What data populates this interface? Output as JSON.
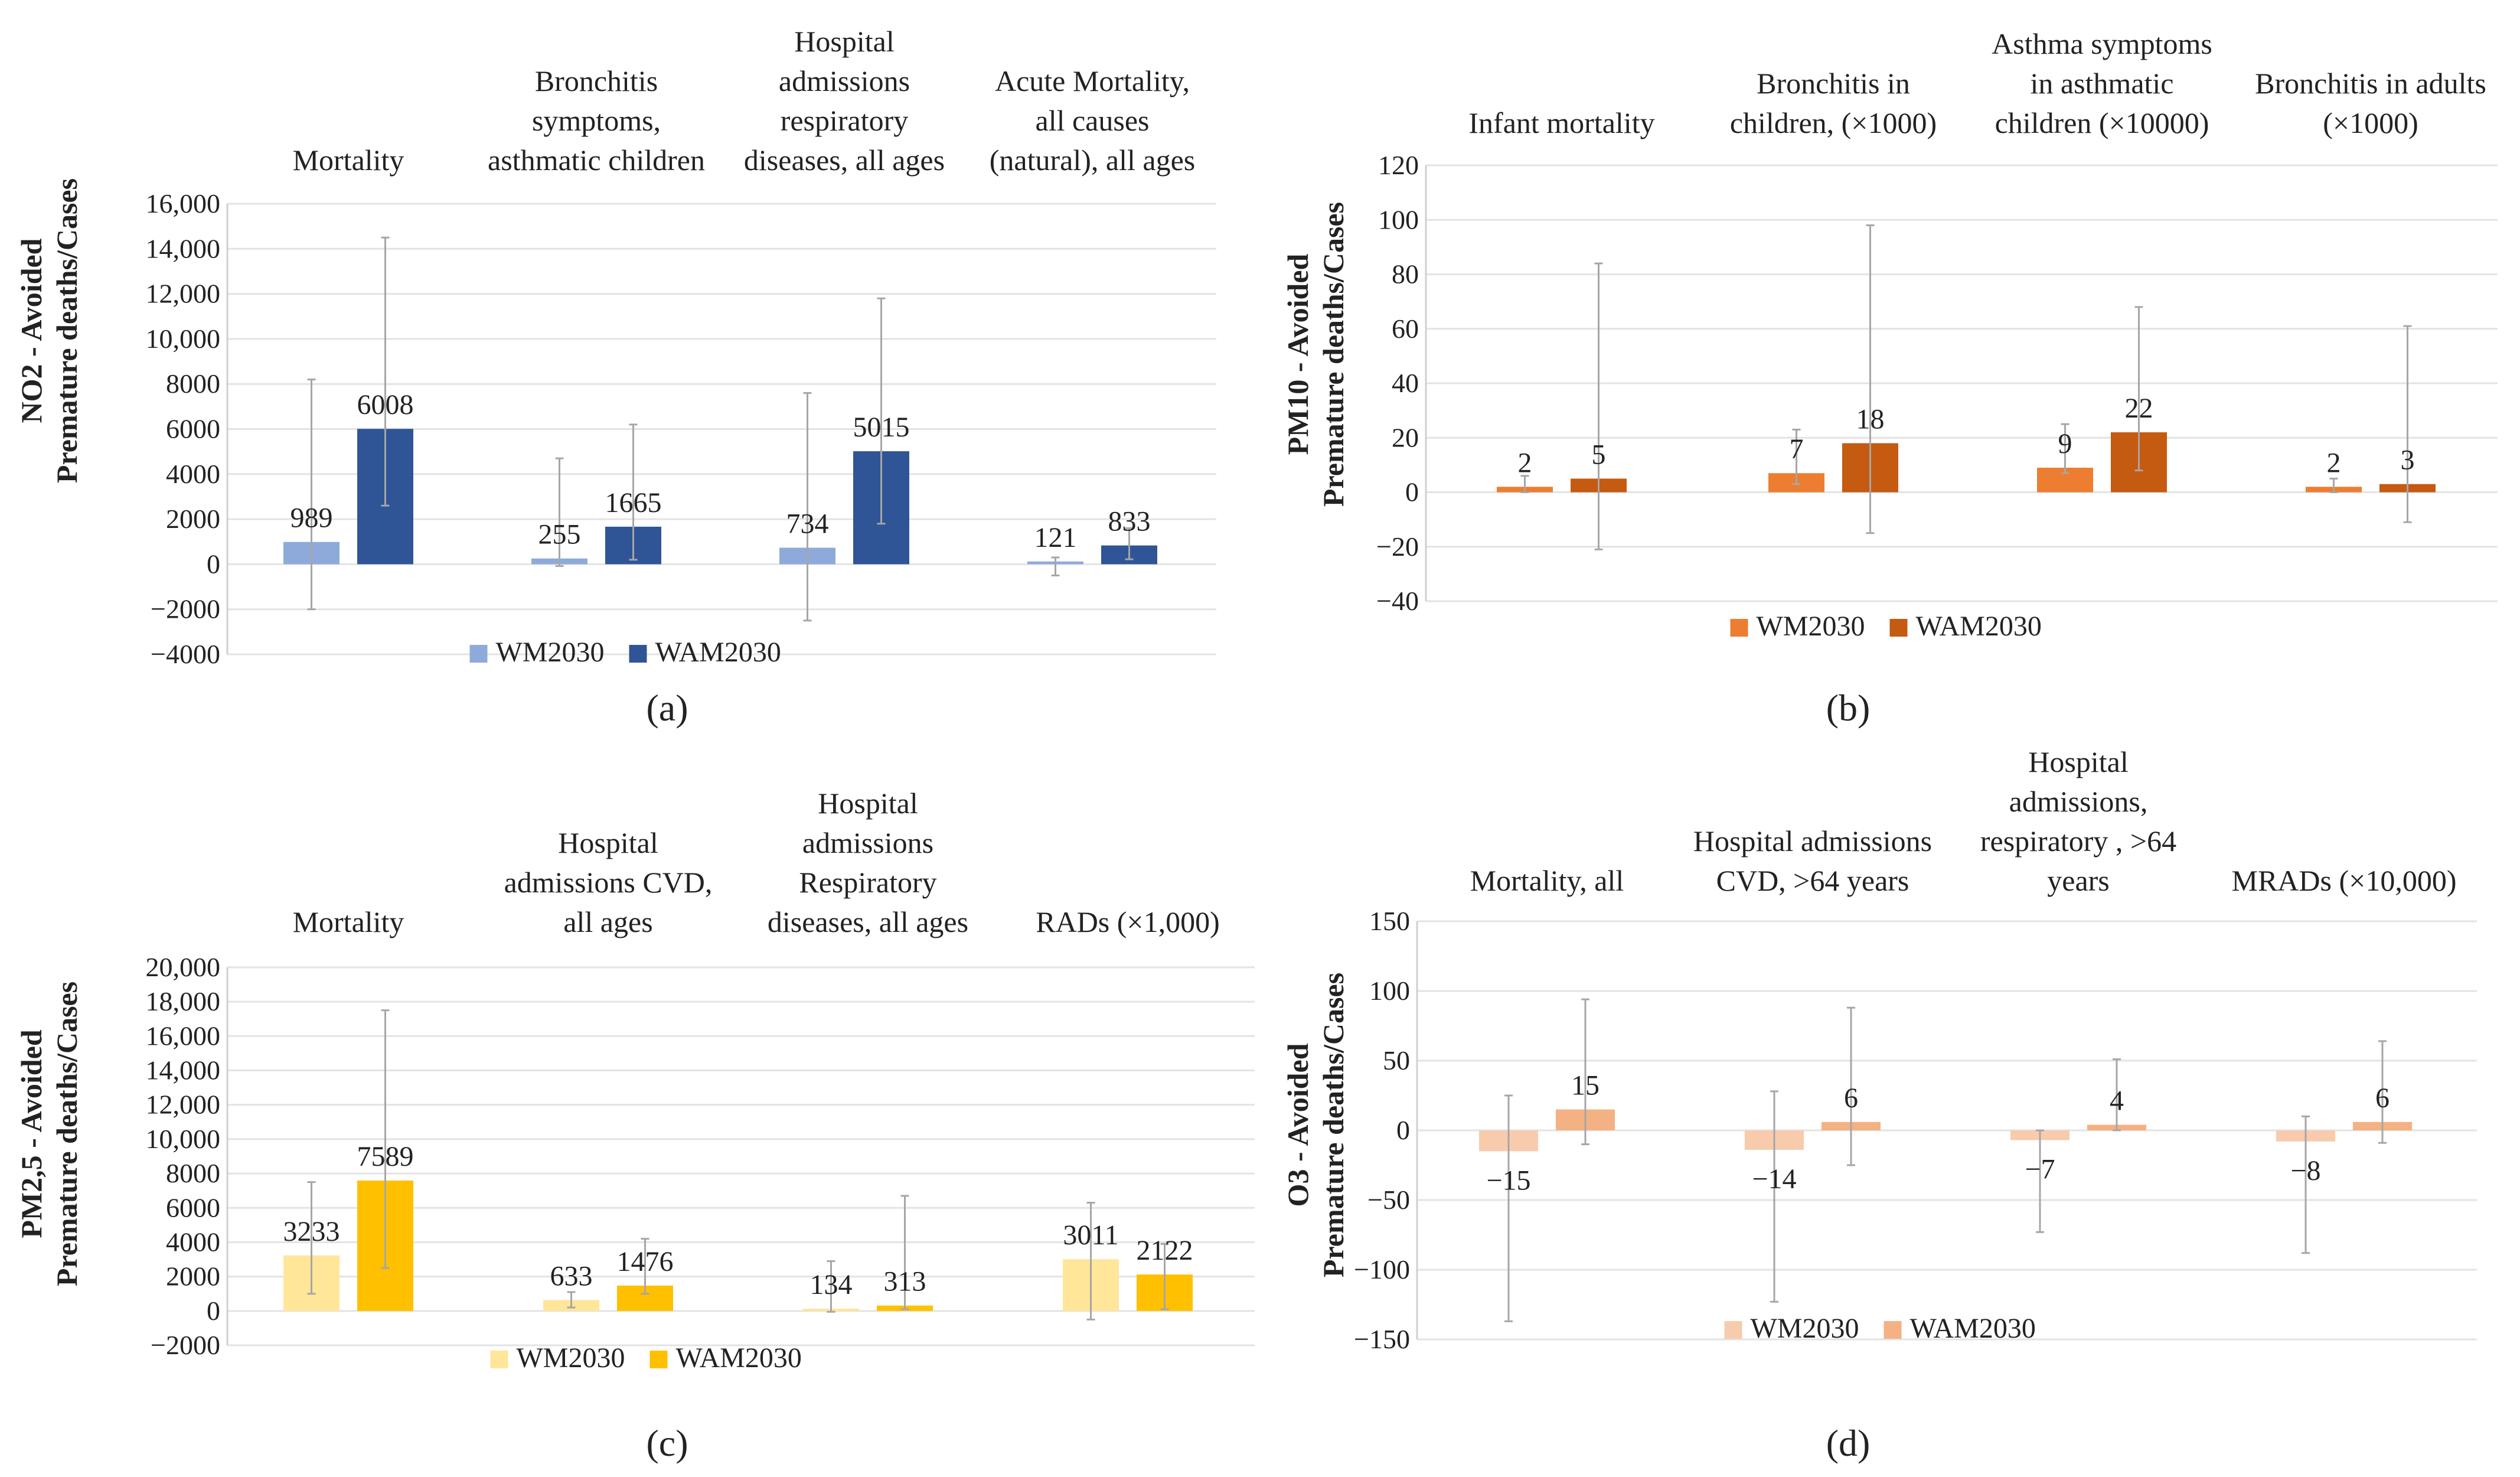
{
  "chart_data": [
    {
      "type": "bar",
      "panel_label": "(a)",
      "ylabel": "NO2 - Avoided Premature deaths/Cases",
      "ylim": [
        -4000,
        16000
      ],
      "yticks": [
        -4000,
        -2000,
        0,
        2000,
        4000,
        6000,
        8000,
        10000,
        12000,
        14000,
        16000
      ],
      "ytick_labels": [
        "−4000",
        "−2000",
        "0",
        "2000",
        "4000",
        "6000",
        "8000",
        "10,000",
        "12,000",
        "14,000",
        "16,000"
      ],
      "categories": [
        [
          "Mortality"
        ],
        [
          "Bronchitis",
          "symptoms,",
          "asthmatic children"
        ],
        [
          "Hospital",
          "admissions",
          "respiratory",
          "diseases, all ages"
        ],
        [
          "Acute Mortality,",
          "all causes",
          "(natural), all ages"
        ]
      ],
      "series": [
        {
          "name": "WM2030",
          "color": "#8eaadb",
          "values": [
            989,
            255,
            734,
            121
          ],
          "labels": [
            "989",
            "255",
            "734",
            "121"
          ],
          "err_low": [
            -2000,
            -80,
            -2500,
            -500
          ],
          "err_high": [
            8200,
            4700,
            7600,
            300
          ]
        },
        {
          "name": "WAM2030",
          "color": "#2f5597",
          "values": [
            6008,
            1665,
            5015,
            833
          ],
          "labels": [
            "6008",
            "1665",
            "5015",
            "833"
          ],
          "err_low": [
            2600,
            200,
            1800,
            220
          ],
          "err_high": [
            14500,
            6200,
            11800,
            1600
          ]
        }
      ]
    },
    {
      "type": "bar",
      "panel_label": "(b)",
      "ylabel": "PM10 - Avoided Premature deaths/Cases",
      "ylim": [
        -40,
        120
      ],
      "yticks": [
        -40,
        -20,
        0,
        20,
        40,
        60,
        80,
        100,
        120
      ],
      "ytick_labels": [
        "−40",
        "−20",
        "0",
        "20",
        "40",
        "60",
        "80",
        "100",
        "120"
      ],
      "categories": [
        [
          "Infant mortality"
        ],
        [
          "Bronchitis in",
          "children, (×1000)"
        ],
        [
          "Asthma symptoms",
          "in asthmatic",
          "children (×10000)"
        ],
        [
          "Bronchitis in adults",
          "(×1000)"
        ]
      ],
      "series": [
        {
          "name": "WM2030",
          "color": "#ed7d31",
          "values": [
            2,
            7,
            9,
            2
          ],
          "labels": [
            "2",
            "7",
            "9",
            "2"
          ],
          "err_low": [
            0,
            3,
            7,
            0
          ],
          "err_high": [
            6,
            23,
            25,
            5
          ]
        },
        {
          "name": "WAM2030",
          "color": "#c55a11",
          "values": [
            5,
            18,
            22,
            3
          ],
          "labels": [
            "5",
            "18",
            "22",
            "3"
          ],
          "err_low": [
            -21,
            -15,
            8,
            -11
          ],
          "err_high": [
            84,
            98,
            68,
            61
          ]
        }
      ]
    },
    {
      "type": "bar",
      "panel_label": "(c)",
      "ylabel": "PM2,5 - Avoided Premature deaths/Cases",
      "ylim": [
        -2000,
        20000
      ],
      "yticks": [
        -2000,
        0,
        2000,
        4000,
        6000,
        8000,
        10000,
        12000,
        14000,
        16000,
        18000,
        20000
      ],
      "ytick_labels": [
        "−2000",
        "0",
        "2000",
        "4000",
        "6000",
        "8000",
        "10,000",
        "12,000",
        "14,000",
        "16,000",
        "18,000",
        "20,000"
      ],
      "categories": [
        [
          "Mortality"
        ],
        [
          "Hospital",
          "admissions CVD,",
          "all ages"
        ],
        [
          "Hospital",
          "admissions",
          "Respiratory",
          "diseases, all ages"
        ],
        [
          "RADs (×1,000)"
        ]
      ],
      "series": [
        {
          "name": "WM2030",
          "color": "#ffe699",
          "values": [
            3233,
            633,
            134,
            3011
          ],
          "labels": [
            "3233",
            "633",
            "134",
            "3011"
          ],
          "err_low": [
            1000,
            200,
            -50,
            -500
          ],
          "err_high": [
            7500,
            1100,
            2900,
            6300
          ]
        },
        {
          "name": "WAM2030",
          "color": "#ffc000",
          "values": [
            7589,
            1476,
            313,
            2122
          ],
          "labels": [
            "7589",
            "1476",
            "313",
            "2122"
          ],
          "err_low": [
            2500,
            1000,
            100,
            100
          ],
          "err_high": [
            17500,
            4200,
            6700,
            3900
          ]
        }
      ]
    },
    {
      "type": "bar",
      "panel_label": "(d)",
      "ylabel": "O3 - Avoided Premature deaths/Cases",
      "ylim": [
        -150,
        150
      ],
      "yticks": [
        -150,
        -100,
        -50,
        0,
        50,
        100,
        150
      ],
      "ytick_labels": [
        "−150",
        "−100",
        "−50",
        "0",
        "50",
        "100",
        "150"
      ],
      "categories": [
        [
          "Mortality, all"
        ],
        [
          "Hospital admissions",
          "CVD, >64 years"
        ],
        [
          "Hospital",
          "admissions,",
          "respiratory , >64",
          "years"
        ],
        [
          "MRADs (×10,000)"
        ]
      ],
      "series": [
        {
          "name": "WM2030",
          "color": "#f8cbad",
          "values": [
            -15,
            -14,
            -7,
            -8
          ],
          "labels": [
            "−15",
            "−14",
            "−7",
            "−8"
          ],
          "err_low": [
            -137,
            -123,
            -73,
            -88
          ],
          "err_high": [
            25,
            28,
            0,
            10
          ]
        },
        {
          "name": "WAM2030",
          "color": "#f4b183",
          "values": [
            15,
            6,
            4,
            6
          ],
          "labels": [
            "15",
            "6",
            "4",
            "6"
          ],
          "err_low": [
            -10,
            -25,
            0,
            -9
          ],
          "err_high": [
            94,
            88,
            51,
            64
          ]
        }
      ]
    }
  ]
}
